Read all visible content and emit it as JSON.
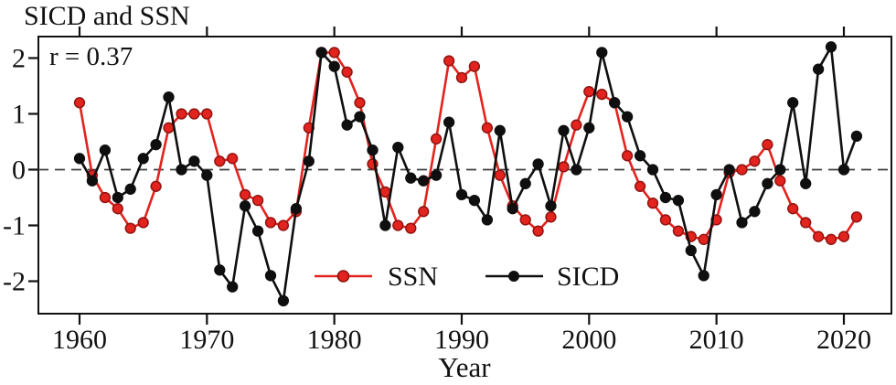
{
  "figure": {
    "title": "SICD and SSN",
    "annotation": "r = 0.37",
    "x_axis_label": "Year"
  },
  "legend": {
    "items": [
      {
        "label": "SSN",
        "color": "#e3231e"
      },
      {
        "label": "SICD",
        "color": "#0f0f0f"
      }
    ]
  },
  "chart_data": {
    "type": "line",
    "title": "SICD and SSN",
    "annotation": "r = 0.37",
    "xlabel": "Year",
    "ylabel": "",
    "x_ticks": [
      1960,
      1970,
      1980,
      1990,
      2000,
      2010,
      2020
    ],
    "y_ticks": [
      -2,
      -1,
      0,
      1,
      2
    ],
    "xlim": [
      1956.8,
      2023.9
    ],
    "ylim": [
      -2.6,
      2.4
    ],
    "grid": false,
    "zero_line": true,
    "legend_position": "inside-bottom-center",
    "years": [
      1960,
      1961,
      1962,
      1963,
      1964,
      1965,
      1966,
      1967,
      1968,
      1969,
      1970,
      1971,
      1972,
      1973,
      1974,
      1975,
      1976,
      1977,
      1978,
      1979,
      1980,
      1981,
      1982,
      1983,
      1984,
      1985,
      1986,
      1987,
      1988,
      1989,
      1990,
      1991,
      1992,
      1993,
      1994,
      1995,
      1996,
      1997,
      1998,
      1999,
      2000,
      2001,
      2002,
      2003,
      2004,
      2005,
      2006,
      2007,
      2008,
      2009,
      2010,
      2011,
      2012,
      2013,
      2014,
      2015,
      2016,
      2017,
      2018,
      2019,
      2020,
      2021
    ],
    "series": [
      {
        "name": "SSN",
        "color": "#e3231e",
        "marker_edge": "#8f1410",
        "values": [
          1.2,
          -0.1,
          -0.5,
          -0.7,
          -1.05,
          -0.95,
          -0.3,
          0.75,
          1.0,
          1.0,
          1.0,
          0.15,
          0.2,
          -0.45,
          -0.55,
          -0.95,
          -1.0,
          -0.75,
          0.75,
          2.1,
          2.1,
          1.75,
          1.2,
          0.1,
          -0.4,
          -1.0,
          -1.05,
          -0.75,
          0.55,
          1.95,
          1.65,
          1.85,
          0.75,
          -0.1,
          -0.65,
          -0.9,
          -1.1,
          -0.85,
          0.05,
          0.8,
          1.4,
          1.35,
          1.2,
          0.25,
          -0.3,
          -0.6,
          -0.9,
          -1.1,
          -1.2,
          -1.25,
          -0.9,
          -0.05,
          0.0,
          0.15,
          0.45,
          -0.2,
          -0.7,
          -0.95,
          -1.2,
          -1.25,
          -1.2,
          -0.85
        ]
      },
      {
        "name": "SICD",
        "color": "#0f0f0f",
        "marker_edge": "#0f0f0f",
        "values": [
          0.2,
          -0.2,
          0.35,
          -0.5,
          -0.35,
          0.2,
          0.45,
          1.3,
          0.0,
          0.15,
          -0.1,
          -1.8,
          -2.1,
          -0.65,
          -1.1,
          -1.9,
          -2.35,
          -0.7,
          0.15,
          2.1,
          1.85,
          0.8,
          0.95,
          0.35,
          -1.0,
          0.4,
          -0.15,
          -0.2,
          -0.1,
          0.85,
          -0.45,
          -0.55,
          -0.9,
          0.7,
          -0.7,
          -0.25,
          0.1,
          -0.65,
          0.7,
          0.0,
          0.75,
          2.1,
          1.2,
          0.95,
          0.25,
          0.0,
          -0.5,
          -0.55,
          -1.45,
          -1.9,
          -0.45,
          0.0,
          -0.95,
          -0.75,
          -0.25,
          0.0,
          1.2,
          -0.25,
          1.8,
          2.2,
          0.0,
          0.6
        ]
      }
    ]
  }
}
